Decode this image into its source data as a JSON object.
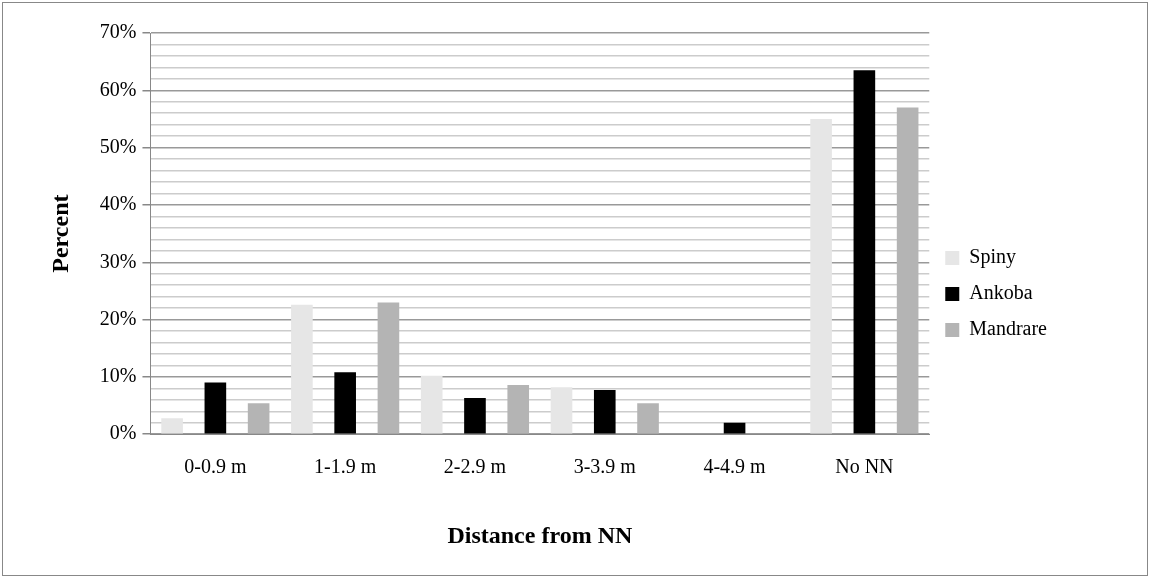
{
  "chart_data": {
    "type": "bar",
    "xlabel": "Distance from NN",
    "ylabel": "Percent",
    "categories": [
      "0-0.9 m",
      "1-1.9 m",
      "2-2.9 m",
      "3-3.9 m",
      "4-4.9 m",
      "No NN"
    ],
    "series": [
      {
        "name": "Spiny",
        "color": "#e6e6e6",
        "values": [
          2.8,
          22.6,
          10.2,
          8.2,
          0,
          55.0
        ]
      },
      {
        "name": "Ankoba",
        "color": "#000000",
        "values": [
          9.0,
          10.8,
          6.3,
          7.7,
          2.0,
          63.5
        ]
      },
      {
        "name": "Mandrare",
        "color": "#b4b4b4",
        "values": [
          5.4,
          23.0,
          8.6,
          5.4,
          0,
          57.0
        ]
      }
    ],
    "ylim": [
      0,
      70
    ],
    "yticks": [
      {
        "value": 0,
        "label": "0%"
      },
      {
        "value": 2,
        "label": null
      },
      {
        "value": 4,
        "label": null
      },
      {
        "value": 6,
        "label": null
      },
      {
        "value": 8,
        "label": null
      },
      {
        "value": 10,
        "label": "10%"
      },
      {
        "value": 12,
        "label": null
      },
      {
        "value": 14,
        "label": null
      },
      {
        "value": 16,
        "label": null
      },
      {
        "value": 18,
        "label": null
      },
      {
        "value": 20,
        "label": "20%"
      },
      {
        "value": 22,
        "label": null
      },
      {
        "value": 24,
        "label": null
      },
      {
        "value": 26,
        "label": null
      },
      {
        "value": 28,
        "label": null
      },
      {
        "value": 30,
        "label": "30%"
      },
      {
        "value": 32,
        "label": null
      },
      {
        "value": 34,
        "label": null
      },
      {
        "value": 36,
        "label": null
      },
      {
        "value": 38,
        "label": null
      },
      {
        "value": 40,
        "label": "40%"
      },
      {
        "value": 42,
        "label": null
      },
      {
        "value": 44,
        "label": null
      },
      {
        "value": 46,
        "label": null
      },
      {
        "value": 48,
        "label": null
      },
      {
        "value": 50,
        "label": "50%"
      },
      {
        "value": 52,
        "label": null
      },
      {
        "value": 54,
        "label": null
      },
      {
        "value": 56,
        "label": null
      },
      {
        "value": 58,
        "label": null
      },
      {
        "value": 60,
        "label": "60%"
      },
      {
        "value": 62,
        "label": null
      },
      {
        "value": 64,
        "label": null
      },
      {
        "value": 66,
        "label": null
      },
      {
        "value": 68,
        "label": null
      },
      {
        "value": 70,
        "label": "70%"
      }
    ],
    "grid": "y",
    "legend": "right"
  }
}
